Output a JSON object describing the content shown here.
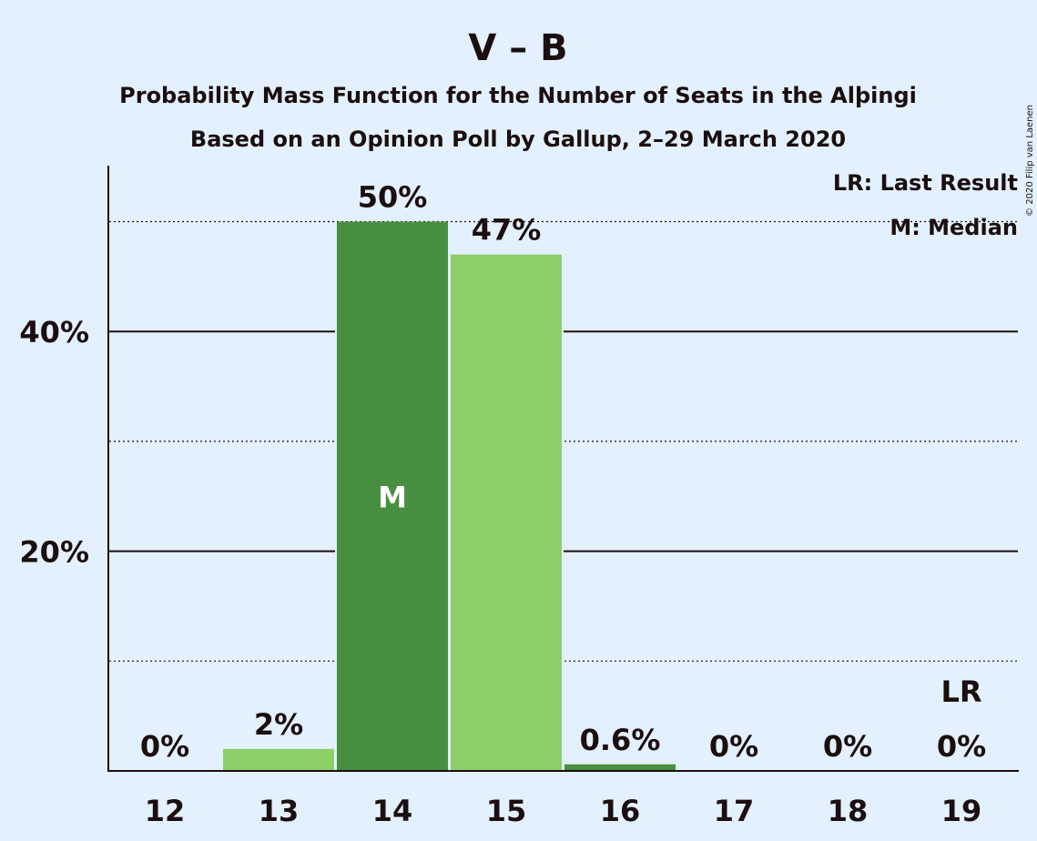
{
  "title": "V – B",
  "subtitle_1": "Probability Mass Function for the Number of Seats in the Alþingi",
  "subtitle_2": "Based on an Opinion Poll by Gallup, 2–29 March 2020",
  "copyright": "© 2020 Filip van Laenen",
  "legend": {
    "last_result": "LR: Last Result",
    "median": "M: Median"
  },
  "colors": {
    "background": "#e3f0fd",
    "bar_dark": "#488f41",
    "bar_light": "#8ccf67",
    "text": "#1b0e0f"
  },
  "chart_data": {
    "type": "bar",
    "categories": [
      "12",
      "13",
      "14",
      "15",
      "16",
      "17",
      "18",
      "19"
    ],
    "values": [
      0,
      2,
      50,
      47,
      0.6,
      0,
      0,
      0
    ],
    "data_labels": [
      "0%",
      "2%",
      "50%",
      "47%",
      "0.6%",
      "0%",
      "0%",
      "0%"
    ],
    "bar_shades": [
      "light",
      "light",
      "dark",
      "light",
      "dark",
      "light",
      "dark",
      "light"
    ],
    "ylim": [
      0,
      55
    ],
    "y_ticks": [
      20,
      40
    ],
    "y_tick_labels": [
      "20%",
      "40%"
    ],
    "y_minor_gridlines": [
      10,
      30,
      50
    ],
    "median_category": "14",
    "median_label": "M",
    "last_result_category": "19",
    "last_result_label": "LR",
    "xlabel": "",
    "ylabel": "",
    "legend_position": "top-right"
  }
}
